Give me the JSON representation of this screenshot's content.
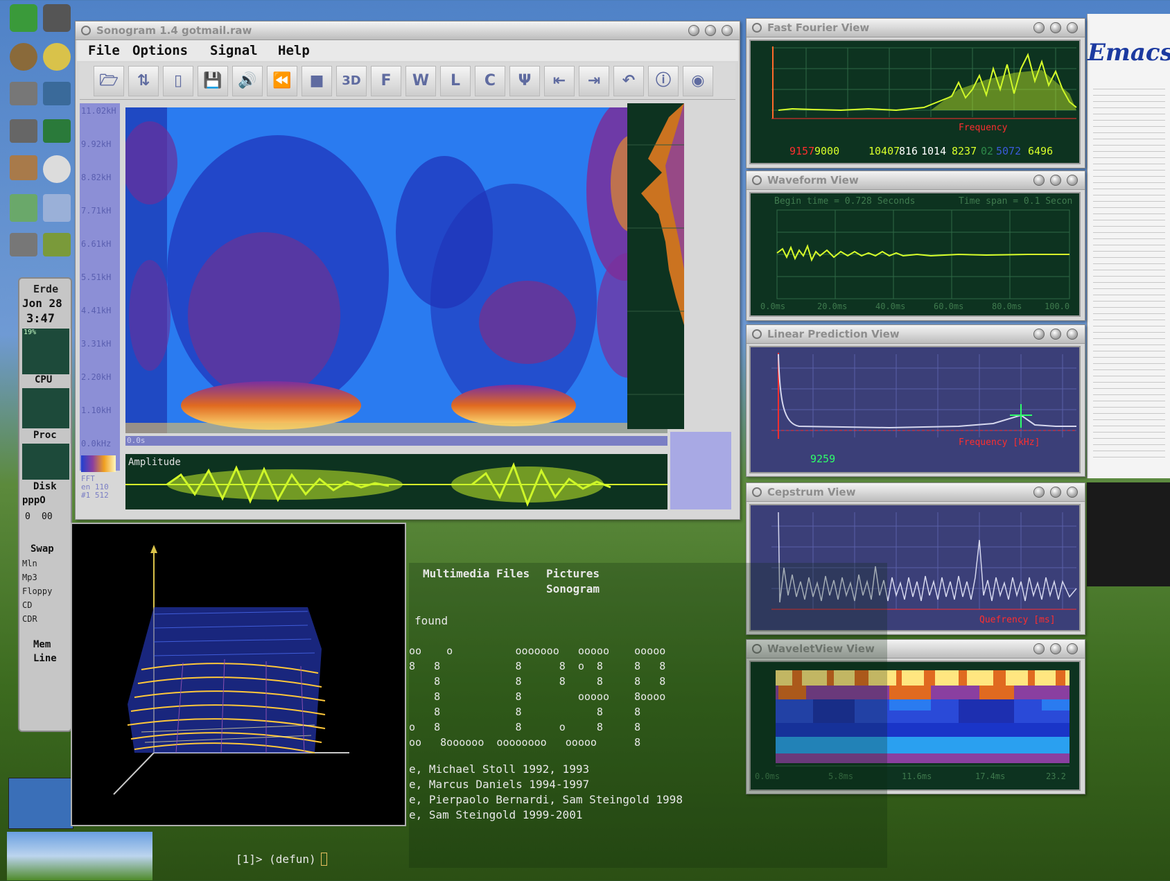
{
  "sonogram": {
    "title": "Sonogram 1.4 gotmail.raw",
    "menu": [
      "File",
      "Options",
      "Signal",
      "Help"
    ],
    "freq_labels": [
      "11.02kH",
      "9.92kH",
      "8.82kH",
      "7.71kH",
      "6.61kH",
      "5.51kH",
      "4.41kH",
      "3.31kH",
      "2.20kH",
      "1.10kH",
      "0.0kHz"
    ],
    "time_start": "0.0s",
    "amplitude_label": "Amplitude",
    "side_info": [
      "FFT",
      "en 110",
      "#1 512"
    ],
    "toolbar_glyphs": [
      "3D",
      "F",
      "W",
      "L",
      "C"
    ]
  },
  "fft": {
    "title": "Fast Fourier View",
    "xaxis_label": "Frequency",
    "values": [
      "9157",
      "9000",
      "10407",
      "816",
      "1014",
      "8237",
      "02",
      "5072",
      "6496"
    ]
  },
  "waveform": {
    "title": "Waveform View",
    "begin_time": "Begin time = 0.728 Seconds",
    "time_span": "Time span = 0.1 Secon",
    "ticks": [
      "0.0ms",
      "20.0ms",
      "40.0ms",
      "60.0ms",
      "80.0ms",
      "100.0"
    ]
  },
  "lpc": {
    "title": "Linear Prediction View",
    "value": "9259",
    "xaxis_label": "Frequency [kHz]"
  },
  "cepstrum": {
    "title": "Cepstrum View",
    "xaxis_label": "Quefrency [ms]"
  },
  "wavelet": {
    "title": "WaveletView View",
    "ticks": [
      "0.0ms",
      "5.8ms",
      "11.6ms",
      "17.4ms",
      "23.2"
    ]
  },
  "dock": {
    "clock_label": "Erde",
    "date": "Jon 28",
    "time": "3:47",
    "cpu_pct": "19%",
    "labels": [
      "CPU",
      "Proc",
      "Disk",
      "pppO",
      "Swap",
      "Mem",
      "Line"
    ],
    "small_items": [
      "0",
      "00",
      "Mln",
      "Mp3",
      "Floppy",
      "CD",
      "CDR"
    ]
  },
  "terminal": {
    "header_items": [
      "Multimedia Files",
      "Pictures",
      "Sonogram"
    ],
    "found": "found",
    "credits": [
      "e, Michael Stoll 1992, 1993",
      "e, Marcus Daniels 1994-1997",
      "e, Pierpaolo Bernardi, Sam Steingold 1998",
      "e, Sam Steingold 1999-2001"
    ],
    "banner": [
      "oo    o          ooooooo   ooooo    ooooo",
      "8   8            8      8  o  8     8   8",
      "    8            8      8     8     8   8",
      "    8            8         ooooo    8oooo",
      "    8            8            8     8",
      "o   8            8      o     8     8",
      "oo   8oooooo  oooooooo   ooooo      8"
    ],
    "prompt": "[1]> (defun)"
  },
  "emacs": {
    "title": "Emacs"
  },
  "colors": {
    "panel_green": "#0d3320",
    "trace_yellow": "#d8ff2a",
    "axis_red": "#ff2e2e",
    "panel_blue": "#3b3f78",
    "sono_blue": "#1a63e8"
  }
}
